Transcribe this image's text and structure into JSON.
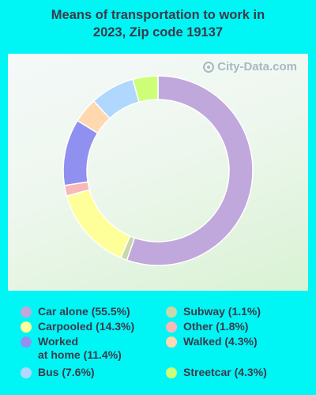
{
  "title": "Means of transportation to work in\n2023, Zip code 19137",
  "watermark": "City-Data.com",
  "chart_data": {
    "type": "pie",
    "donut": true,
    "slices": [
      {
        "label": "Car alone",
        "value": 55.5,
        "display": "Car alone (55.5%)",
        "color": "#c0a8dc"
      },
      {
        "label": "Subway",
        "value": 1.1,
        "display": "Subway (1.1%)",
        "color": "#c8d8a8"
      },
      {
        "label": "Carpooled",
        "value": 14.3,
        "display": "Carpooled (14.3%)",
        "color": "#ffff99"
      },
      {
        "label": "Other",
        "value": 1.8,
        "display": "Other (1.8%)",
        "color": "#f8b8b8"
      },
      {
        "label": "Worked at home",
        "value": 11.4,
        "display": "Worked\nat home (11.4%)",
        "color": "#9090f0"
      },
      {
        "label": "Walked",
        "value": 4.3,
        "display": "Walked (4.3%)",
        "color": "#ffd8b0"
      },
      {
        "label": "Bus",
        "value": 7.6,
        "display": "Bus (7.6%)",
        "color": "#b0d8ff"
      },
      {
        "label": "Streetcar",
        "value": 4.3,
        "display": "Streetcar (4.3%)",
        "color": "#ccff77"
      }
    ],
    "legend_order": [
      "Car alone",
      "Carpooled",
      "Worked at home",
      "Bus",
      "Subway",
      "Other",
      "Walked",
      "Streetcar"
    ]
  }
}
